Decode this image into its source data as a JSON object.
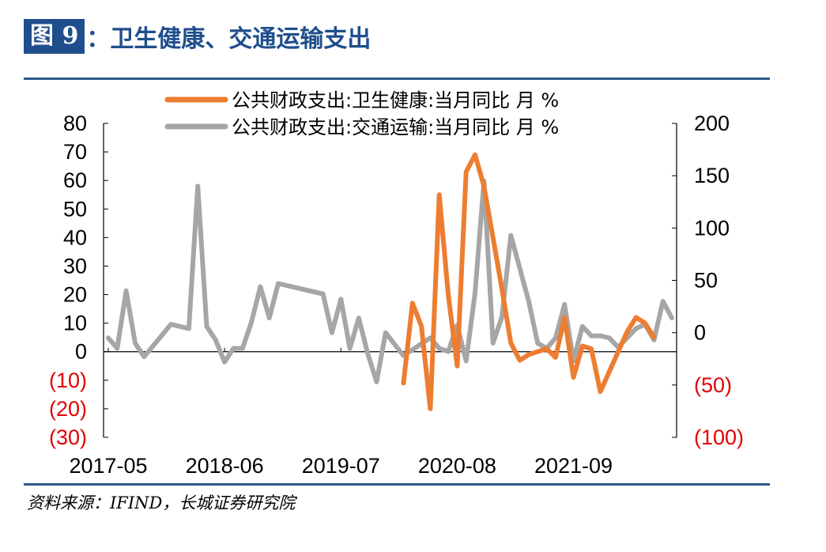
{
  "header": {
    "figure_label": "图 9",
    "title": "：卫生健康、交通运输支出"
  },
  "source": "资料来源：IFIND，长城证券研究院",
  "colors": {
    "brand_blue": "#1f4e8c",
    "health_series": "#ed7d31",
    "transport_series": "#a6a6a6",
    "negative_label": "#e00000"
  },
  "chart_data": {
    "type": "line",
    "legend_position": "top-center",
    "grid": false,
    "x_tick_labels": [
      "2017-05",
      "2018-06",
      "2019-07",
      "2020-08",
      "2021-09"
    ],
    "y_left": {
      "range": [
        -30,
        80
      ],
      "ticks": [
        80,
        70,
        60,
        50,
        40,
        30,
        20,
        10,
        0,
        -10,
        -20,
        -30
      ],
      "tick_labels": [
        "80",
        "70",
        "60",
        "50",
        "40",
        "30",
        "20",
        "10",
        "0",
        "(10)",
        "(20)",
        "(30)"
      ]
    },
    "y_right": {
      "range": [
        -100,
        200
      ],
      "ticks": [
        200,
        150,
        100,
        50,
        0,
        -50,
        -100
      ],
      "tick_labels": [
        "200",
        "150",
        "100",
        "50",
        "0",
        "(50)",
        "(100)"
      ]
    },
    "series": [
      {
        "name": "公共财政支出:卫生健康:当月同比 月 %",
        "axis": "left",
        "color": "#ed7d31",
        "points": [
          [
            "2020-02",
            -11
          ],
          [
            "2020-03",
            17
          ],
          [
            "2020-04",
            9
          ],
          [
            "2020-05",
            -20
          ],
          [
            "2020-06",
            55
          ],
          [
            "2020-07",
            20
          ],
          [
            "2020-08",
            -5
          ],
          [
            "2020-09",
            63
          ],
          [
            "2020-10",
            69
          ],
          [
            "2020-11",
            58
          ],
          [
            "2020-12",
            40
          ],
          [
            "2021-01",
            22
          ],
          [
            "2021-02",
            3
          ],
          [
            "2021-03",
            -3
          ],
          [
            "2021-04",
            -1
          ],
          [
            "2021-05",
            0
          ],
          [
            "2021-06",
            1
          ],
          [
            "2021-07",
            -2
          ],
          [
            "2021-08",
            12
          ],
          [
            "2021-09",
            -9
          ],
          [
            "2021-10",
            2
          ],
          [
            "2021-11",
            1
          ],
          [
            "2021-12",
            -14
          ],
          [
            "2022-01",
            -7
          ],
          [
            "2022-02",
            0
          ],
          [
            "2022-03",
            7
          ],
          [
            "2022-04",
            12
          ],
          [
            "2022-05",
            10
          ],
          [
            "2022-06",
            5
          ]
        ]
      },
      {
        "name": "公共财政支出:交通运输:当月同比 月 %",
        "axis": "right",
        "color": "#a6a6a6",
        "points": [
          [
            "2017-05",
            -5
          ],
          [
            "2017-06",
            -15
          ],
          [
            "2017-07",
            40
          ],
          [
            "2017-08",
            -10
          ],
          [
            "2017-09",
            -23
          ],
          [
            "2017-12",
            8
          ],
          [
            "2018-02",
            4
          ],
          [
            "2018-03",
            140
          ],
          [
            "2018-04",
            6
          ],
          [
            "2018-05",
            -7
          ],
          [
            "2018-06",
            -28
          ],
          [
            "2018-07",
            -15
          ],
          [
            "2018-08",
            -15
          ],
          [
            "2018-09",
            10
          ],
          [
            "2018-10",
            44
          ],
          [
            "2018-11",
            14
          ],
          [
            "2018-12",
            47
          ],
          [
            "2019-05",
            37
          ],
          [
            "2019-06",
            0
          ],
          [
            "2019-07",
            32
          ],
          [
            "2019-08",
            -15
          ],
          [
            "2019-09",
            14
          ],
          [
            "2019-10",
            -20
          ],
          [
            "2019-11",
            -47
          ],
          [
            "2019-12",
            0
          ],
          [
            "2020-02",
            -22
          ],
          [
            "2020-05",
            -5
          ],
          [
            "2020-06",
            -15
          ],
          [
            "2020-07",
            -18
          ],
          [
            "2020-08",
            7
          ],
          [
            "2020-09",
            -27
          ],
          [
            "2020-10",
            38
          ],
          [
            "2020-11",
            145
          ],
          [
            "2020-12",
            -10
          ],
          [
            "2021-01",
            15
          ],
          [
            "2021-02",
            93
          ],
          [
            "2021-04",
            30
          ],
          [
            "2021-05",
            -10
          ],
          [
            "2021-06",
            -15
          ],
          [
            "2021-07",
            -5
          ],
          [
            "2021-08",
            27
          ],
          [
            "2021-09",
            -27
          ],
          [
            "2021-10",
            6
          ],
          [
            "2021-11",
            -3
          ],
          [
            "2021-12",
            -3
          ],
          [
            "2022-01",
            -5
          ],
          [
            "2022-02",
            -14
          ],
          [
            "2022-04",
            4
          ],
          [
            "2022-05",
            8
          ],
          [
            "2022-06",
            -7
          ],
          [
            "2022-07",
            30
          ],
          [
            "2022-08",
            14
          ]
        ]
      }
    ]
  }
}
